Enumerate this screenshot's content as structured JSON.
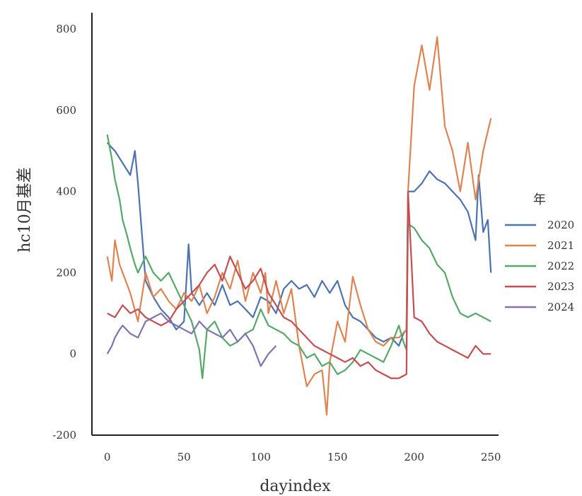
{
  "chart_data": {
    "type": "line",
    "xlabel": "dayindex",
    "ylabel": "hc10月基差",
    "xlim": [
      -10,
      255
    ],
    "ylim": [
      -200,
      840
    ],
    "xticks": [
      0,
      50,
      100,
      150,
      200,
      250
    ],
    "yticks": [
      -200,
      0,
      200,
      400,
      600,
      800
    ],
    "grid": false,
    "legend": {
      "title": "年",
      "placement": "right-center"
    },
    "series": [
      {
        "name": "2020",
        "color": "#4c72b0",
        "x": [
          0,
          5,
          10,
          15,
          18,
          20,
          25,
          30,
          35,
          40,
          45,
          50,
          53,
          55,
          60,
          65,
          70,
          75,
          80,
          85,
          90,
          95,
          100,
          105,
          110,
          115,
          120,
          125,
          130,
          135,
          140,
          145,
          150,
          155,
          160,
          165,
          170,
          175,
          180,
          185,
          190,
          193,
          195,
          196,
          200,
          205,
          210,
          215,
          220,
          225,
          230,
          235,
          240,
          242,
          245,
          248,
          250
        ],
        "y": [
          520,
          500,
          470,
          440,
          500,
          420,
          180,
          140,
          110,
          90,
          60,
          80,
          270,
          150,
          120,
          150,
          120,
          170,
          120,
          130,
          110,
          90,
          140,
          130,
          100,
          160,
          180,
          160,
          170,
          140,
          180,
          150,
          180,
          120,
          90,
          80,
          60,
          40,
          30,
          40,
          20,
          50,
          60,
          400,
          400,
          420,
          450,
          430,
          420,
          400,
          380,
          350,
          280,
          440,
          300,
          330,
          200
        ]
      },
      {
        "name": "2021",
        "color": "#dd8452",
        "x": [
          0,
          3,
          5,
          8,
          10,
          15,
          20,
          25,
          30,
          35,
          40,
          45,
          50,
          55,
          60,
          65,
          70,
          75,
          80,
          85,
          90,
          95,
          100,
          103,
          105,
          110,
          115,
          120,
          125,
          130,
          135,
          140,
          143,
          145,
          150,
          155,
          160,
          165,
          170,
          175,
          180,
          185,
          190,
          195,
          196,
          200,
          205,
          210,
          215,
          220,
          225,
          230,
          235,
          240,
          245,
          250
        ],
        "y": [
          240,
          180,
          280,
          220,
          200,
          150,
          80,
          200,
          140,
          160,
          130,
          110,
          150,
          130,
          170,
          100,
          140,
          200,
          160,
          230,
          130,
          200,
          150,
          200,
          100,
          180,
          100,
          160,
          20,
          -80,
          -50,
          -40,
          -150,
          -20,
          80,
          30,
          190,
          120,
          60,
          30,
          20,
          40,
          40,
          60,
          400,
          660,
          760,
          650,
          780,
          560,
          500,
          400,
          520,
          380,
          500,
          580
        ]
      },
      {
        "name": "2022",
        "color": "#55a868",
        "x": [
          0,
          3,
          5,
          8,
          10,
          13,
          15,
          18,
          20,
          25,
          30,
          35,
          40,
          45,
          50,
          55,
          60,
          62,
          65,
          70,
          75,
          80,
          85,
          90,
          95,
          100,
          105,
          110,
          115,
          120,
          125,
          130,
          135,
          140,
          145,
          150,
          155,
          160,
          165,
          170,
          175,
          180,
          185,
          190,
          193,
          195,
          196,
          200,
          205,
          210,
          215,
          220,
          225,
          230,
          235,
          240,
          245,
          250
        ],
        "y": [
          540,
          480,
          430,
          380,
          330,
          290,
          260,
          220,
          200,
          240,
          200,
          180,
          200,
          160,
          120,
          80,
          10,
          -60,
          60,
          80,
          40,
          20,
          30,
          50,
          60,
          110,
          70,
          60,
          50,
          30,
          20,
          -10,
          0,
          -30,
          -20,
          -50,
          -40,
          -20,
          10,
          0,
          -10,
          -20,
          20,
          70,
          30,
          10,
          320,
          310,
          280,
          260,
          220,
          200,
          140,
          100,
          90,
          100,
          90,
          80
        ]
      },
      {
        "name": "2023",
        "color": "#c44e52",
        "x": [
          0,
          5,
          10,
          15,
          20,
          25,
          30,
          35,
          40,
          45,
          50,
          55,
          60,
          65,
          70,
          75,
          80,
          85,
          90,
          95,
          100,
          105,
          110,
          115,
          120,
          125,
          130,
          135,
          140,
          145,
          150,
          155,
          160,
          165,
          170,
          175,
          180,
          185,
          190,
          195,
          196,
          200,
          205,
          210,
          215,
          220,
          225,
          230,
          235,
          240,
          245,
          250
        ],
        "y": [
          100,
          90,
          120,
          100,
          110,
          90,
          80,
          70,
          80,
          110,
          130,
          150,
          170,
          200,
          220,
          180,
          240,
          200,
          160,
          180,
          210,
          150,
          120,
          90,
          80,
          60,
          40,
          20,
          10,
          0,
          -10,
          -20,
          -10,
          -30,
          -20,
          -40,
          -50,
          -60,
          -60,
          -50,
          400,
          90,
          80,
          50,
          30,
          20,
          10,
          0,
          -10,
          20,
          0,
          0
        ]
      },
      {
        "name": "2024",
        "color": "#8172b2",
        "x": [
          0,
          3,
          5,
          8,
          10,
          15,
          20,
          25,
          30,
          35,
          40,
          45,
          50,
          55,
          60,
          65,
          70,
          75,
          80,
          85,
          90,
          95,
          100,
          105,
          110
        ],
        "y": [
          0,
          20,
          40,
          60,
          70,
          50,
          40,
          80,
          90,
          100,
          80,
          70,
          60,
          50,
          80,
          60,
          50,
          40,
          60,
          30,
          50,
          20,
          -30,
          0,
          20
        ]
      }
    ]
  }
}
